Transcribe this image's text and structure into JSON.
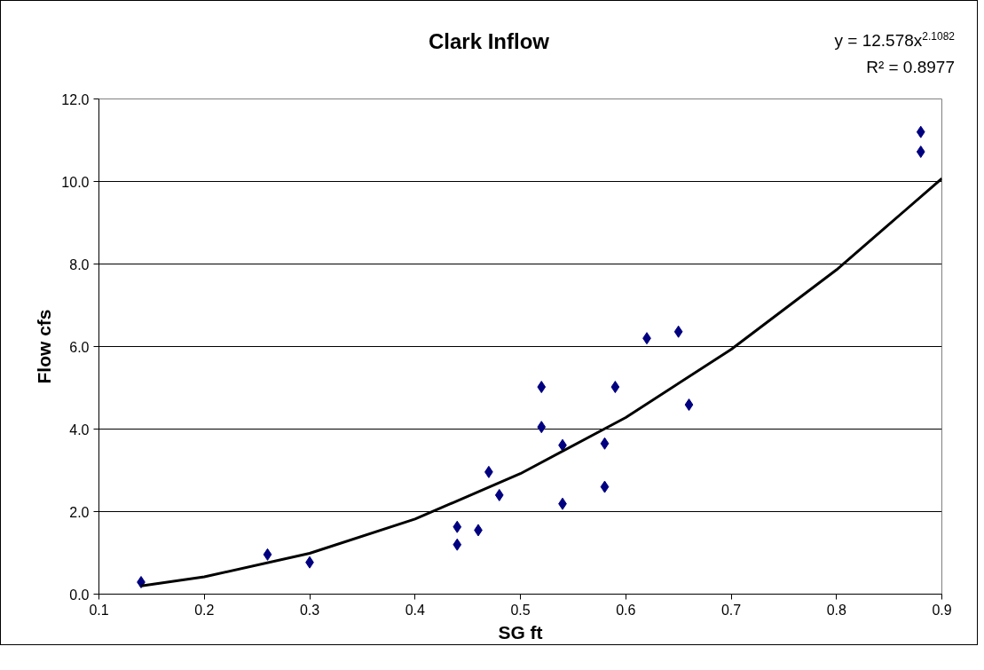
{
  "chart_data": {
    "type": "scatter",
    "title": "Clark Inflow",
    "xlabel": "SG ft",
    "ylabel": "Flow cfs",
    "annotations": [
      "y = 12.578x$^{2.1082}$",
      "R² = 0.8977"
    ],
    "xlim": [
      0.1,
      0.9
    ],
    "xticks": [
      {
        "value": 0.1,
        "label": "0.1"
      },
      {
        "value": 0.2,
        "label": "0.2"
      },
      {
        "value": 0.3,
        "label": "0.3"
      },
      {
        "value": 0.4,
        "label": "0.4"
      },
      {
        "value": 0.5,
        "label": "0.5"
      },
      {
        "value": 0.6,
        "label": "0.6"
      },
      {
        "value": 0.7,
        "label": "0.7"
      },
      {
        "value": 0.8,
        "label": "0.8"
      },
      {
        "value": 0.9,
        "label": "0.9"
      }
    ],
    "ylim": [
      0,
      12
    ],
    "yticks": [
      {
        "value": 0,
        "label": "0.0"
      },
      {
        "value": 2,
        "label": "2.0"
      },
      {
        "value": 4,
        "label": "4.0"
      },
      {
        "value": 6,
        "label": "6.0"
      },
      {
        "value": 8,
        "label": "8.0"
      },
      {
        "value": 10,
        "label": "10.0"
      },
      {
        "value": 12,
        "label": "12.0"
      }
    ],
    "grid": "y",
    "marker": "diamond",
    "series": [
      {
        "color": "#000080",
        "x": [
          0.14,
          0.26,
          0.3,
          0.44,
          0.44,
          0.46,
          0.47,
          0.48,
          0.52,
          0.52,
          0.54,
          0.54,
          0.58,
          0.58,
          0.59,
          0.62,
          0.65,
          0.66,
          0.88,
          0.88
        ],
        "values": [
          0.29,
          0.96,
          0.77,
          1.63,
          1.2,
          1.55,
          2.96,
          2.4,
          5.02,
          4.05,
          3.61,
          2.19,
          3.65,
          2.6,
          5.02,
          6.2,
          6.36,
          4.59,
          11.2,
          10.72
        ]
      },
      {
        "type": "line",
        "color": "#000000",
        "marker": "none",
        "line_style": "solid",
        "x": [
          0.14,
          0.2,
          0.3,
          0.4,
          0.5,
          0.6,
          0.7,
          0.8,
          0.9
        ],
        "values": [
          0.2,
          0.42,
          0.99,
          1.82,
          2.92,
          4.28,
          5.93,
          7.86,
          10.07
        ]
      }
    ]
  }
}
